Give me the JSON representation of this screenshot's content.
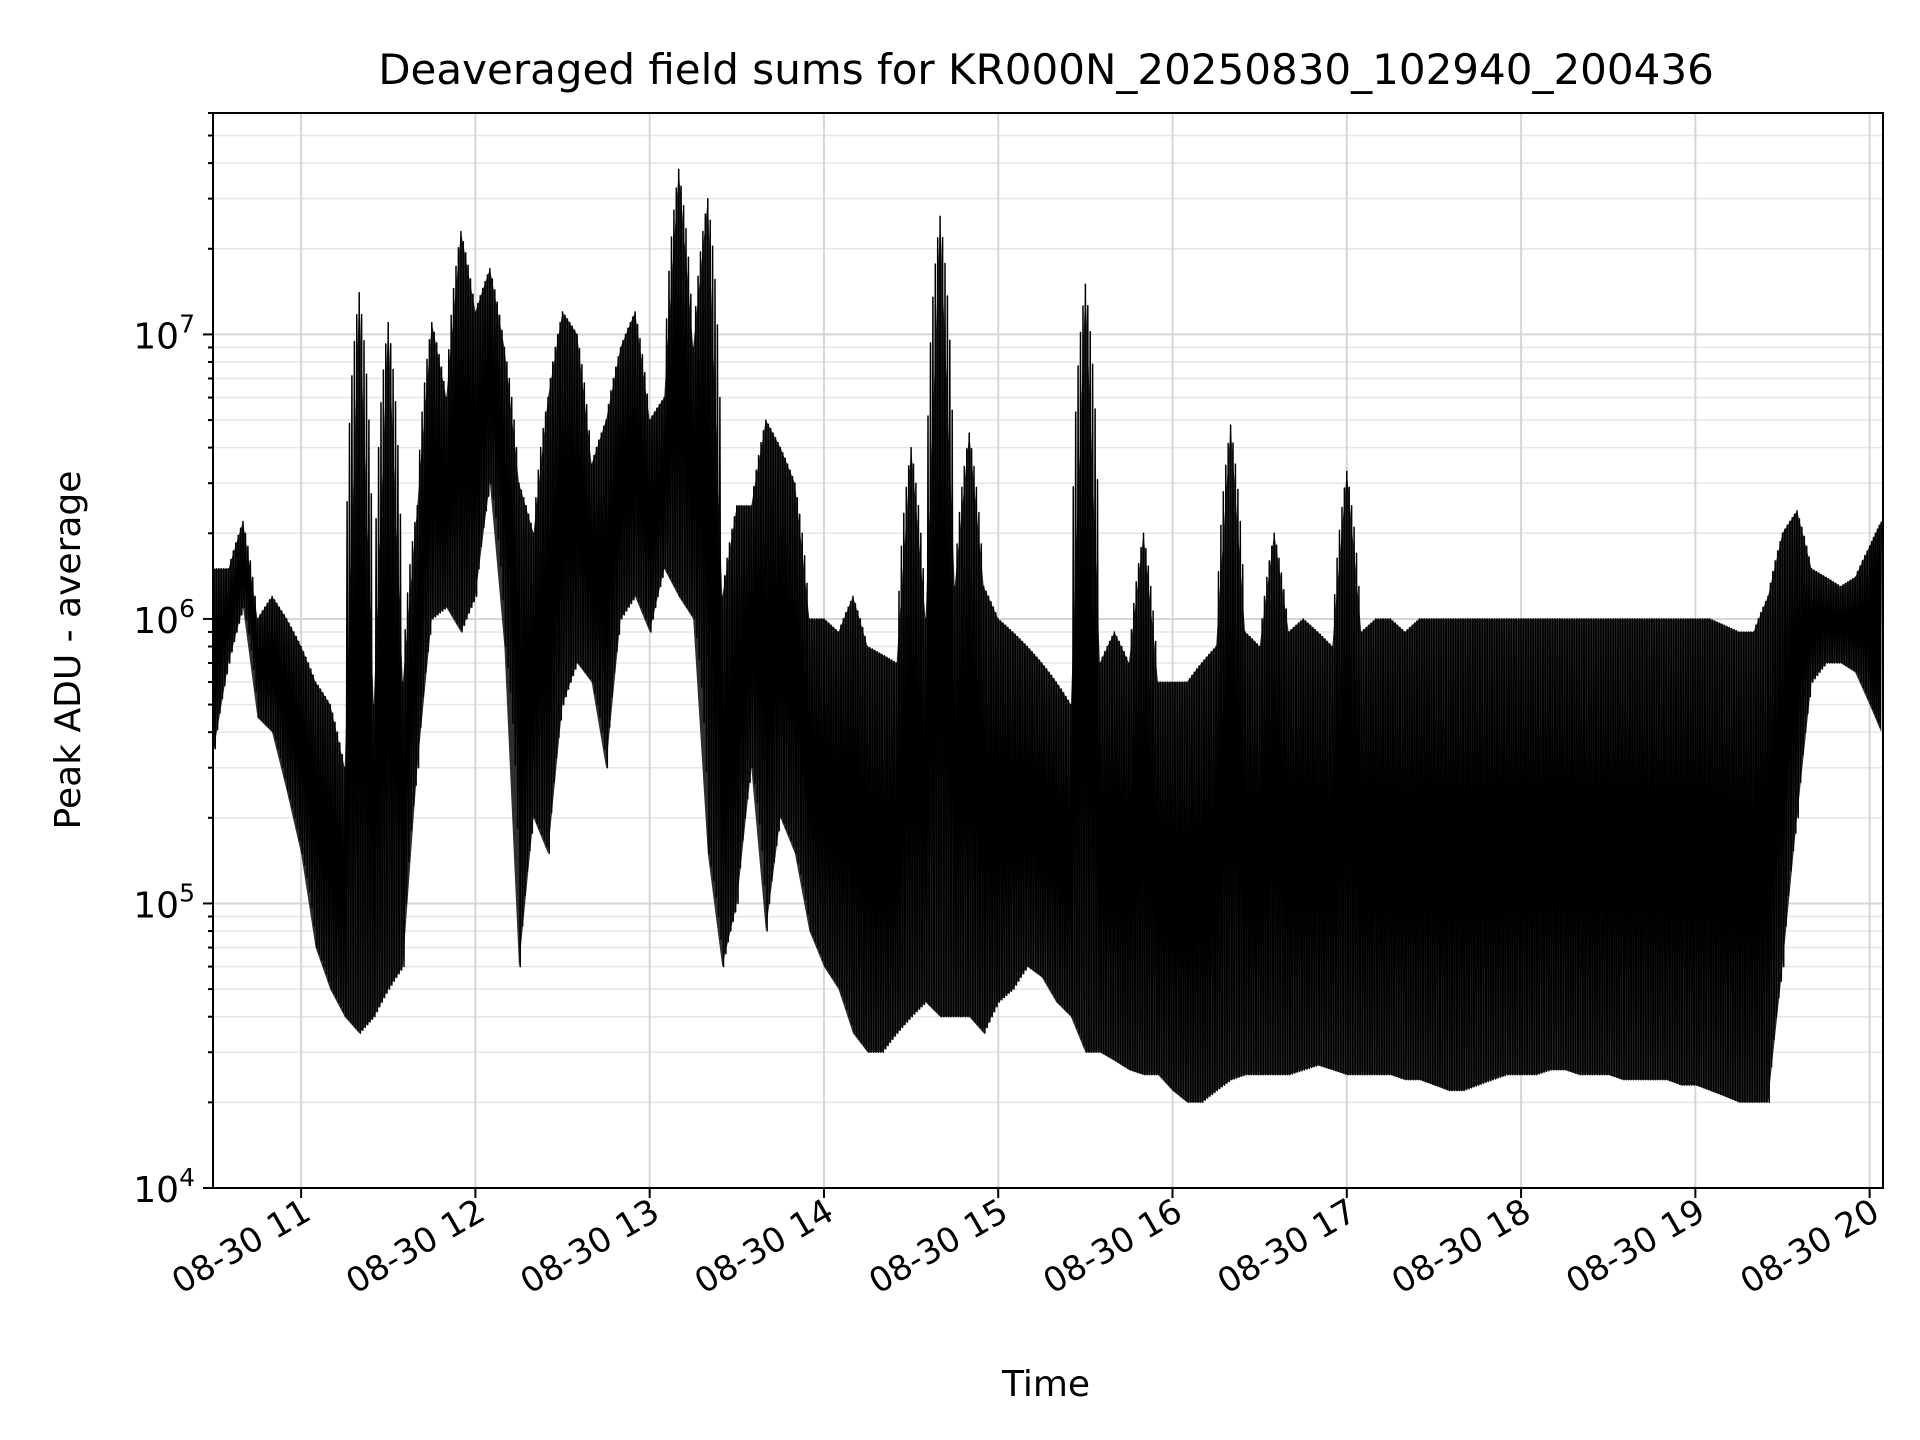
{
  "chart_data": {
    "type": "line",
    "title": "Deaveraged field sums for KR000N_20250830_102940_200436",
    "xlabel": "Time",
    "ylabel": "Peak ADU - average",
    "yscale": "log",
    "xlim": [
      "2025-08-30 10:29:40",
      "2025-08-30 20:04:36"
    ],
    "ylim": [
      10000,
      60000000
    ],
    "grid": true,
    "line_color": "#000000",
    "x_ticks": [
      "08-30 11",
      "08-30 12",
      "08-30 13",
      "08-30 14",
      "08-30 15",
      "08-30 16",
      "08-30 17",
      "08-30 18",
      "08-30 19",
      "08-30 20"
    ],
    "y_ticks": [
      {
        "base": "10",
        "exp": "4"
      },
      {
        "base": "10",
        "exp": "5"
      },
      {
        "base": "10",
        "exp": "6"
      },
      {
        "base": "10",
        "exp": "7"
      }
    ],
    "series": [
      {
        "x": [
          "10:30",
          "10:35",
          "10:40",
          "10:45",
          "10:50",
          "10:55",
          "11:00",
          "11:05",
          "11:10",
          "11:15",
          "11:20",
          "11:25",
          "11:30",
          "11:35",
          "11:40",
          "11:45",
          "11:50",
          "11:55",
          "12:00",
          "12:05",
          "12:10",
          "12:15",
          "12:20",
          "12:25",
          "12:30",
          "12:35",
          "12:40",
          "12:45",
          "12:50",
          "12:55",
          "13:00",
          "13:05",
          "13:10",
          "13:15",
          "13:20",
          "13:25",
          "13:30",
          "13:35",
          "13:40",
          "13:45",
          "13:50",
          "13:55",
          "14:00",
          "14:05",
          "14:10",
          "14:15",
          "14:20",
          "14:25",
          "14:30",
          "14:35",
          "14:40",
          "14:45",
          "14:50",
          "14:55",
          "15:00",
          "15:05",
          "15:10",
          "15:15",
          "15:20",
          "15:25",
          "15:30",
          "15:35",
          "15:40",
          "15:45",
          "15:50",
          "15:55",
          "16:00",
          "16:05",
          "16:10",
          "16:15",
          "16:20",
          "16:25",
          "16:30",
          "16:35",
          "16:40",
          "16:45",
          "16:50",
          "16:55",
          "17:00",
          "17:05",
          "17:10",
          "17:15",
          "17:20",
          "17:25",
          "17:30",
          "17:35",
          "17:40",
          "17:45",
          "17:50",
          "17:55",
          "18:00",
          "18:05",
          "18:10",
          "18:15",
          "18:20",
          "18:25",
          "18:30",
          "18:35",
          "18:40",
          "18:45",
          "18:50",
          "18:55",
          "19:00",
          "19:05",
          "19:10",
          "19:15",
          "19:20",
          "19:25",
          "19:30",
          "19:35",
          "19:40",
          "19:45",
          "19:50",
          "19:55",
          "20:00",
          "20:04"
        ],
        "low": [
          350000,
          700000,
          1100000,
          450000,
          400000,
          250000,
          150000,
          70000,
          50000,
          40000,
          35000,
          40000,
          50000,
          60000,
          300000,
          1000000,
          1100000,
          900000,
          1200000,
          3000000,
          800000,
          60000,
          200000,
          150000,
          500000,
          700000,
          600000,
          300000,
          1000000,
          1200000,
          900000,
          1500000,
          1200000,
          1000000,
          150000,
          60000,
          100000,
          300000,
          80000,
          200000,
          150000,
          80000,
          60000,
          50000,
          35000,
          30000,
          30000,
          35000,
          40000,
          45000,
          40000,
          40000,
          40000,
          35000,
          45000,
          50000,
          60000,
          55000,
          45000,
          40000,
          30000,
          30000,
          28000,
          26000,
          25000,
          25000,
          22000,
          20000,
          20000,
          22000,
          24000,
          25000,
          25000,
          25000,
          25000,
          26000,
          27000,
          26000,
          25000,
          25000,
          25000,
          25000,
          24000,
          24000,
          23000,
          22000,
          22000,
          23000,
          24000,
          25000,
          25000,
          25000,
          26000,
          26000,
          25000,
          25000,
          25000,
          24000,
          24000,
          24000,
          24000,
          23000,
          23000,
          22000,
          21000,
          20000,
          20000,
          20000,
          60000,
          200000,
          600000,
          700000,
          700000,
          650000,
          500000,
          400000
        ],
        "high": [
          1500000,
          1500000,
          2200000,
          1000000,
          1200000,
          1000000,
          800000,
          600000,
          500000,
          300000,
          14000000,
          500000,
          11000000,
          600000,
          2500000,
          11000000,
          6000000,
          23000000,
          12000000,
          17000000,
          9000000,
          3000000,
          2000000,
          6000000,
          12000000,
          10000000,
          3500000,
          5000000,
          9000000,
          12000000,
          5000000,
          6000000,
          38000000,
          9000000,
          30000000,
          1200000,
          2500000,
          2500000,
          5000000,
          4000000,
          3000000,
          1000000,
          1000000,
          900000,
          1200000,
          800000,
          750000,
          700000,
          4000000,
          1000000,
          26000000,
          1300000,
          4500000,
          1300000,
          1000000,
          900000,
          800000,
          700000,
          600000,
          500000,
          15000000,
          700000,
          900000,
          700000,
          2000000,
          600000,
          600000,
          600000,
          700000,
          800000,
          4800000,
          900000,
          800000,
          2000000,
          900000,
          1000000,
          900000,
          800000,
          3300000,
          900000,
          1000000,
          1000000,
          900000,
          1000000,
          1000000,
          1000000,
          1000000,
          1000000,
          1000000,
          1000000,
          1000000,
          1000000,
          1000000,
          1000000,
          1000000,
          1000000,
          1000000,
          1000000,
          1000000,
          1000000,
          1000000,
          1000000,
          1000000,
          1000000,
          950000,
          900000,
          900000,
          1200000,
          2000000,
          2400000,
          1500000,
          1400000,
          1300000,
          1400000,
          1800000,
          2200000
        ]
      }
    ]
  }
}
